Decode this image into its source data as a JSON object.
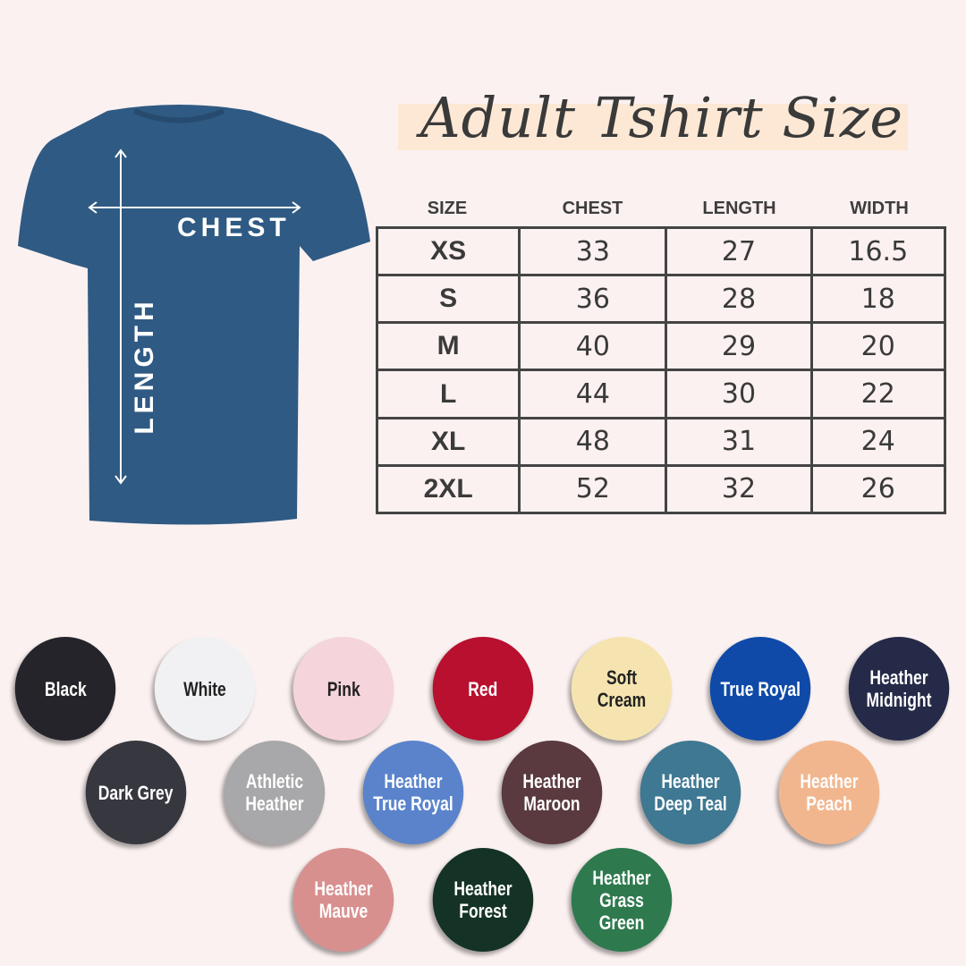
{
  "title": "Adult Tshirt Size",
  "shirt": {
    "color": "#2f5a83",
    "chest_label": "CHEST",
    "length_label": "LENGTH"
  },
  "table": {
    "headers": [
      "SIZE",
      "CHEST",
      "LENGTH",
      "WIDTH"
    ],
    "rows": [
      [
        "XS",
        "33",
        "27",
        "16.5"
      ],
      [
        "S",
        "36",
        "28",
        "18"
      ],
      [
        "M",
        "40",
        "29",
        "20"
      ],
      [
        "L",
        "44",
        "30",
        "22"
      ],
      [
        "XL",
        "48",
        "31",
        "24"
      ],
      [
        "2XL",
        "52",
        "32",
        "26"
      ]
    ]
  },
  "colors": [
    {
      "name": "Black",
      "hex": "#25242a",
      "text": "#ffffff"
    },
    {
      "name": "White",
      "hex": "#f1f1f3",
      "text": "#222222"
    },
    {
      "name": "Pink",
      "hex": "#f5d4dc",
      "text": "#222222"
    },
    {
      "name": "Red",
      "hex": "#b8102e",
      "text": "#ffffff"
    },
    {
      "name": "Soft Cream",
      "hex": "#f6e4b0",
      "text": "#222222"
    },
    {
      "name": "True Royal",
      "hex": "#0f4aa8",
      "text": "#ffffff"
    },
    {
      "name": "Heather Midnight",
      "hex": "#252a48",
      "text": "#ffffff"
    },
    {
      "name": "Dark Grey",
      "hex": "#37373f",
      "text": "#ffffff"
    },
    {
      "name": "Athletic Heather",
      "hex": "#a8a8aa",
      "text": "#ffffff"
    },
    {
      "name": "Heather True Royal",
      "hex": "#5a83cc",
      "text": "#ffffff"
    },
    {
      "name": "Heather Maroon",
      "hex": "#5a3a3e",
      "text": "#ffffff"
    },
    {
      "name": "Heather Deep Teal",
      "hex": "#3f7892",
      "text": "#ffffff"
    },
    {
      "name": "Heather Peach",
      "hex": "#f2b68e",
      "text": "#ffffff"
    },
    {
      "name": "Heather Mauve",
      "hex": "#d8908f",
      "text": "#ffffff"
    },
    {
      "name": "Heather Forest",
      "hex": "#143326",
      "text": "#ffffff"
    },
    {
      "name": "Heather Grass Green",
      "hex": "#2e7a4e",
      "text": "#ffffff"
    }
  ]
}
